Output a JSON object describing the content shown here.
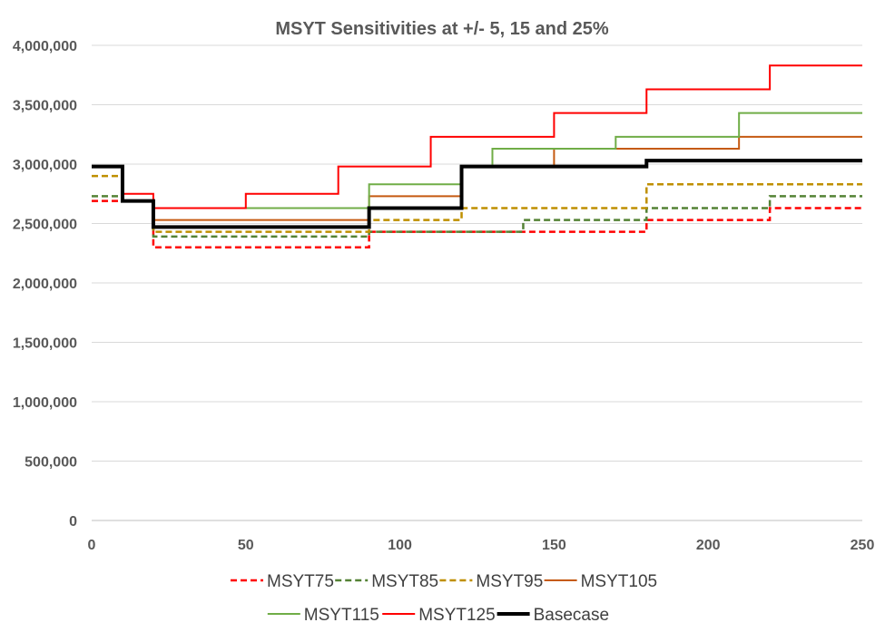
{
  "chart_data": {
    "type": "line",
    "title": "MSYT Sensitivities at +/- 5, 15 and 25%",
    "xlabel": "",
    "ylabel": "",
    "xlim": [
      0,
      250
    ],
    "ylim": [
      0,
      4000000
    ],
    "x_ticks": [
      0,
      50,
      100,
      150,
      200,
      250
    ],
    "y_ticks": [
      0,
      500000,
      1000000,
      1500000,
      2000000,
      2500000,
      3000000,
      3500000,
      4000000
    ],
    "x_tick_labels": [
      "0",
      "50",
      "100",
      "150",
      "200",
      "250"
    ],
    "y_tick_labels": [
      "0",
      "500,000",
      "1,000,000",
      "1,500,000",
      "2,000,000",
      "2,500,000",
      "3,000,000",
      "3,500,000",
      "4,000,000"
    ],
    "grid": "horizontal",
    "legend_position": "bottom",
    "step": "post",
    "series": [
      {
        "name": "MSYT75",
        "color": "#ff0000",
        "style": "dashed",
        "width": 2.5,
        "x": [
          0,
          10,
          20,
          90,
          140,
          180,
          220,
          250
        ],
        "y": [
          2690000,
          2690000,
          2300000,
          2430000,
          2430000,
          2530000,
          2630000,
          2630000
        ]
      },
      {
        "name": "MSYT85",
        "color": "#548235",
        "style": "dashed",
        "width": 2.5,
        "x": [
          0,
          10,
          20,
          90,
          140,
          180,
          220,
          250
        ],
        "y": [
          2730000,
          2690000,
          2390000,
          2430000,
          2530000,
          2630000,
          2730000,
          2730000
        ]
      },
      {
        "name": "MSYT95",
        "color": "#bf8f00",
        "style": "dashed",
        "width": 2.5,
        "x": [
          0,
          10,
          20,
          90,
          120,
          180,
          250
        ],
        "y": [
          2900000,
          2690000,
          2430000,
          2530000,
          2630000,
          2830000,
          2830000
        ]
      },
      {
        "name": "MSYT105",
        "color": "#c55a11",
        "style": "solid",
        "width": 2,
        "x": [
          0,
          10,
          20,
          90,
          120,
          150,
          210,
          250
        ],
        "y": [
          2980000,
          2690000,
          2530000,
          2730000,
          2980000,
          3130000,
          3230000,
          3230000
        ]
      },
      {
        "name": "MSYT115",
        "color": "#70ad47",
        "style": "solid",
        "width": 2,
        "x": [
          0,
          10,
          20,
          90,
          120,
          130,
          170,
          210,
          250
        ],
        "y": [
          2980000,
          2690000,
          2630000,
          2830000,
          2980000,
          3130000,
          3230000,
          3430000,
          3430000
        ]
      },
      {
        "name": "MSYT125",
        "color": "#ff0000",
        "style": "solid",
        "width": 2,
        "x": [
          0,
          10,
          20,
          50,
          80,
          110,
          150,
          180,
          220,
          250
        ],
        "y": [
          2980000,
          2750000,
          2630000,
          2750000,
          2980000,
          3230000,
          3430000,
          3630000,
          3830000,
          3830000
        ]
      },
      {
        "name": "Basecase",
        "color": "#000000",
        "style": "solid",
        "width": 4,
        "x": [
          0,
          10,
          20,
          30,
          90,
          120,
          180,
          220,
          250
        ],
        "y": [
          2980000,
          2690000,
          2470000,
          2470000,
          2630000,
          2980000,
          3030000,
          3030000,
          3030000
        ]
      }
    ]
  }
}
